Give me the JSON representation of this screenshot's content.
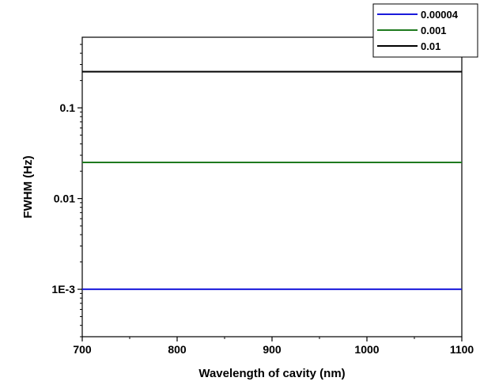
{
  "chart_data": {
    "type": "line",
    "title": "",
    "xlabel": "Wavelength of cavity (nm)",
    "ylabel": "FWHM (Hz)",
    "xlim": [
      700,
      1100
    ],
    "ylim": [
      0.0003,
      0.6
    ],
    "yscale": "log",
    "grid": false,
    "legend_position": "top-right",
    "x_ticks": [
      {
        "value": 700,
        "label": "700"
      },
      {
        "value": 800,
        "label": "800"
      },
      {
        "value": 900,
        "label": "900"
      },
      {
        "value": 1000,
        "label": "1000"
      },
      {
        "value": 1100,
        "label": "1100"
      }
    ],
    "y_ticks": [
      {
        "value": 0.001,
        "label": "1E-3"
      },
      {
        "value": 0.01,
        "label": "0.01"
      },
      {
        "value": 0.1,
        "label": "0.1"
      }
    ],
    "series": [
      {
        "name": "0.00004",
        "color": "#1a1adb",
        "x": [
          700,
          1100
        ],
        "y": [
          0.001,
          0.001
        ]
      },
      {
        "name": "0.001",
        "color": "#1f7a1f",
        "x": [
          700,
          1100
        ],
        "y": [
          0.025,
          0.025
        ]
      },
      {
        "name": "0.01",
        "color": "#000000",
        "x": [
          700,
          1100
        ],
        "y": [
          0.25,
          0.25
        ]
      }
    ]
  }
}
